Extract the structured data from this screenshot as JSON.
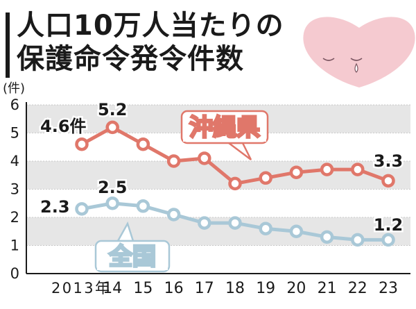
{
  "title_lines": [
    "人口10万人当たりの",
    "保護命令発令件数"
  ],
  "colors": {
    "okinawa": "#e0776a",
    "national": "#a9c8d7",
    "band": "#e6e6e6",
    "text": "#1a1a1a",
    "heart": "#f1b8c0"
  },
  "chart_data": {
    "type": "line",
    "title": "人口10万人当たりの保護命令発令件数",
    "ylabel": "(件)",
    "ylim": [
      0,
      6
    ],
    "yticks": [
      "0",
      "1",
      "2",
      "3",
      "4",
      "5",
      "6"
    ],
    "x": [
      "2013年",
      "14",
      "15",
      "16",
      "17",
      "18",
      "19",
      "20",
      "21",
      "22",
      "23"
    ],
    "series": [
      {
        "name": "沖縄県",
        "values": [
          4.6,
          5.2,
          4.6,
          4.0,
          4.1,
          3.2,
          3.4,
          3.6,
          3.7,
          3.7,
          3.3
        ],
        "labels": [
          {
            "index": 0,
            "text": "4.6件"
          },
          {
            "index": 1,
            "text": "5.2"
          },
          {
            "index": 10,
            "text": "3.3"
          }
        ]
      },
      {
        "name": "全国",
        "values": [
          2.3,
          2.5,
          2.4,
          2.1,
          1.8,
          1.8,
          1.6,
          1.5,
          1.3,
          1.2,
          1.2
        ],
        "labels": [
          {
            "index": 0,
            "text": "2.3"
          },
          {
            "index": 1,
            "text": "2.5"
          },
          {
            "index": 10,
            "text": "1.2"
          }
        ]
      }
    ],
    "grid": "horizontal bands"
  }
}
